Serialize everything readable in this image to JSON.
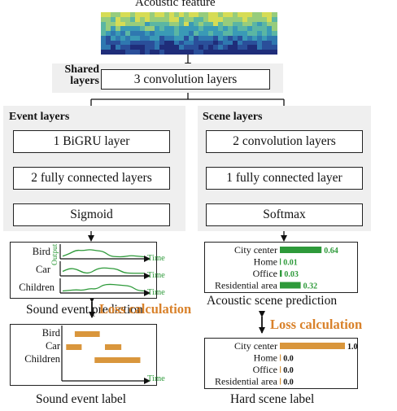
{
  "input": {
    "title": "Acoustic feature",
    "colors": [
      "#1f2d7a",
      "#2a4f9a",
      "#2f78b0",
      "#3a9ab6",
      "#5bb6a3",
      "#97cc7c",
      "#d6dc55"
    ]
  },
  "shared": {
    "label": "Shared layers",
    "layer": "3 convolution layers"
  },
  "event": {
    "label": "Event layers",
    "layers": [
      "1 BiGRU layer",
      "2 fully connected layers",
      "Sigmoid"
    ],
    "prediction": {
      "classes": [
        "Bird",
        "Car",
        "Children"
      ],
      "axis_label": "Time",
      "y_label": "Output",
      "caption": "Sound event prediction",
      "line_color": "#2e9a3a",
      "curves": [
        [
          0.15,
          0.35,
          0.65,
          0.6,
          0.7,
          0.6,
          0.55,
          0.15,
          0.1,
          0.1,
          0.2,
          0.15,
          0.1
        ],
        [
          0.3,
          0.55,
          0.5,
          0.2,
          0.15,
          0.5,
          0.6,
          0.55,
          0.5,
          0.2,
          0.15,
          0.15,
          0.15
        ],
        [
          0.1,
          0.15,
          0.2,
          0.15,
          0.3,
          0.25,
          0.6,
          0.65,
          0.6,
          0.55,
          0.5,
          0.15,
          0.1
        ]
      ]
    },
    "label_plot": {
      "classes": [
        "Bird",
        "Car",
        "Children"
      ],
      "axis_label": "Time",
      "caption": "Sound event label",
      "bar_color": "#d9963c",
      "segments": [
        [
          [
            0.15,
            0.44
          ]
        ],
        [
          [
            0.05,
            0.23
          ],
          [
            0.5,
            0.69
          ]
        ],
        [
          [
            0.38,
            0.91
          ]
        ]
      ]
    }
  },
  "scene": {
    "label": "Scene layers",
    "layers": [
      "2 convolution layers",
      "1 fully connected layer",
      "Softmax"
    ],
    "prediction": {
      "classes": [
        "City center",
        "Home",
        "Office",
        "Residential area"
      ],
      "values": [
        0.64,
        0.01,
        0.03,
        0.32
      ],
      "caption": "Acoustic scene prediction",
      "bar_color": "#2e9a3a"
    },
    "label_plot": {
      "classes": [
        "City center",
        "Home",
        "Office",
        "Residential area"
      ],
      "values": [
        1.0,
        0.0,
        0.0,
        0.0
      ],
      "value_labels": [
        "1.0",
        "0.0",
        "0.0",
        "0.0"
      ],
      "caption": "Hard scene label",
      "bar_color": "#d9963c"
    }
  },
  "loss": {
    "label": "Loss calculation",
    "color": "#d9822b"
  }
}
